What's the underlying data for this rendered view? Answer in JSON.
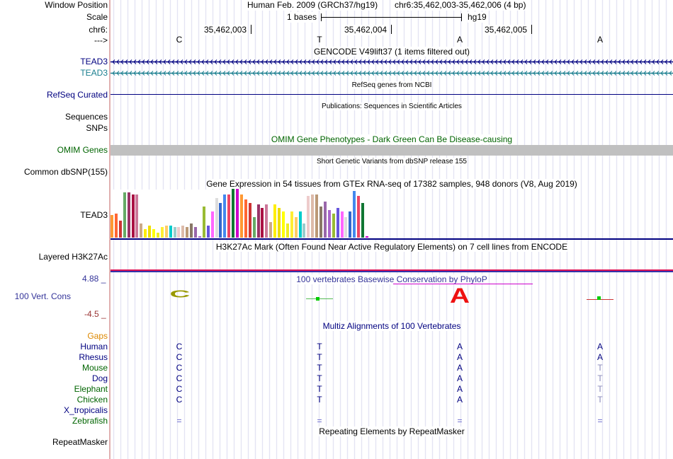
{
  "header": {
    "window_position_label": "Window Position",
    "scale_label": "Scale",
    "chr_label": "chr6:",
    "arrow_label": "--->",
    "assembly": "Human Feb. 2009 (GRCh37/hg19)",
    "position": "chr6:35,462,003-35,462,006 (4 bp)",
    "scale_text": "1 bases",
    "scale_db": "hg19",
    "coords": [
      "35,462,003",
      "35,462,004",
      "35,462,005"
    ],
    "bases": [
      "C",
      "T",
      "A",
      "A"
    ]
  },
  "tracks": {
    "gencode": {
      "title": "GENCODE V49lift37 (1 items filtered out)",
      "items": [
        "TEAD3",
        "TEAD3"
      ]
    },
    "refseq": {
      "title": "RefSeq genes from NCBI",
      "label": "RefSeq Curated"
    },
    "publications": {
      "title": "Publications: Sequences in Scientific Articles",
      "labels": [
        "Sequences",
        "SNPs"
      ]
    },
    "omim": {
      "title": "OMIM Gene Phenotypes - Dark Green Can Be Disease-causing",
      "label": "OMIM Genes"
    },
    "dbsnp": {
      "title": "Short Genetic Variants from dbSNP release 155",
      "label": "Common dbSNP(155)"
    },
    "gtex": {
      "title": "Gene Expression in 54 tissues from GTEx RNA-seq of 17382 samples, 948 donors (V8, Aug 2019)",
      "label": "TEAD3",
      "values": [
        0.26,
        0.28,
        0.2,
        0.52,
        0.52,
        0.5,
        0.5,
        0.16,
        0.1,
        0.14,
        0.1,
        0.06,
        0.12,
        0.14,
        0.14,
        0.12,
        0.12,
        0.14,
        0.12,
        0.16,
        0.12,
        0.02,
        0.36,
        0.14,
        0.3,
        0.46,
        0.4,
        0.5,
        0.5,
        0.56,
        0.56,
        0.5,
        0.44,
        0.4,
        0.24,
        0.38,
        0.34,
        0.38,
        0.18,
        0.38,
        0.34,
        0.3,
        0.16,
        0.3,
        0.24,
        0.3,
        0.16,
        0.48,
        0.5,
        0.5,
        0.36,
        0.42,
        0.32,
        0.28,
        0.34,
        0.3,
        0.24,
        0.3,
        0.54,
        0.48,
        0.4,
        0.02
      ]
    },
    "h3k27ac": {
      "title": "H3K27Ac Mark (Often Found Near Active Regulatory Elements) on 7 cell lines from ENCODE",
      "label": "Layered H3K27Ac"
    },
    "phylop": {
      "title": "100 vertebrates Basewise Conservation by PhyloP",
      "label": "100 Vert. Cons",
      "max": "4.88 _",
      "min": "-4.5 _"
    },
    "multiz": {
      "title": "Multiz Alignments of 100 Vertebrates",
      "gaps_label": "Gaps",
      "species": [
        {
          "name": "Human",
          "bases": [
            "C",
            "T",
            "A",
            "A"
          ]
        },
        {
          "name": "Rhesus",
          "bases": [
            "C",
            "T",
            "A",
            "A"
          ]
        },
        {
          "name": "Mouse",
          "bases": [
            "C",
            "T",
            "A",
            "T"
          ]
        },
        {
          "name": "Dog",
          "bases": [
            "C",
            "T",
            "A",
            "T"
          ]
        },
        {
          "name": "Elephant",
          "bases": [
            "C",
            "T",
            "A",
            "T"
          ]
        },
        {
          "name": "Chicken",
          "bases": [
            "C",
            "T",
            "A",
            "T"
          ]
        },
        {
          "name": "X_tropicalis",
          "bases": [
            "",
            "",
            "",
            ""
          ]
        },
        {
          "name": "Zebrafish",
          "bases": [
            "=",
            "=",
            "=",
            "="
          ]
        }
      ]
    },
    "repeatmasker": {
      "title": "Repeating Elements by RepeatMasker",
      "label": "RepeatMasker"
    }
  },
  "colors": {
    "navy": "#000080",
    "teal": "#1a7f8f",
    "omim_green": "#006400",
    "gtex_palette": [
      "#ff9933",
      "#ff6633",
      "#cc3333",
      "#66aa66",
      "#993366",
      "#aa1144",
      "#cc7799",
      "#ccaa88",
      "#ffee00",
      "#eedd00",
      "#ffff00",
      "#eeee22",
      "#ffee33",
      "#ffcc66",
      "#00cccc",
      "#99cccc",
      "#eecccc",
      "#ddbbaa",
      "#bb9977",
      "#887766",
      "#9966aa",
      "#aa66cc",
      "#99bb33",
      "#6655dd",
      "#ff66ff",
      "#dddddd",
      "#3366cc",
      "#4488ee",
      "#ee4466",
      "#117733",
      "#cc00cc"
    ]
  }
}
